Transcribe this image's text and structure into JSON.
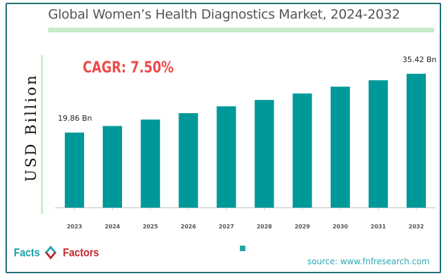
{
  "chart_data": {
    "type": "bar",
    "title": "Global Women’s Health Diagnostics Market, 2024-2032",
    "ylabel": "USD Billion",
    "xlabel": "",
    "categories": [
      "2023",
      "2024",
      "2025",
      "2026",
      "2027",
      "2028",
      "2029",
      "2030",
      "2031",
      "2032"
    ],
    "values": [
      19.86,
      21.6,
      23.3,
      25.0,
      26.8,
      28.5,
      30.2,
      32.0,
      33.7,
      35.42
    ],
    "data_labels": {
      "2023": "19.86 Bn",
      "2032": "35.42 Bn"
    },
    "annotation": "CAGR: 7.50%",
    "ylim": [
      0,
      40
    ],
    "grid": false,
    "legend": "bottom-center",
    "bar_color": "#009999",
    "annotation_color": "#ee4a4a"
  },
  "footer": {
    "logo_left": "Facts",
    "logo_right": "Factors",
    "legend_mark": ".",
    "source": "source: www.fnfresearch.com"
  }
}
